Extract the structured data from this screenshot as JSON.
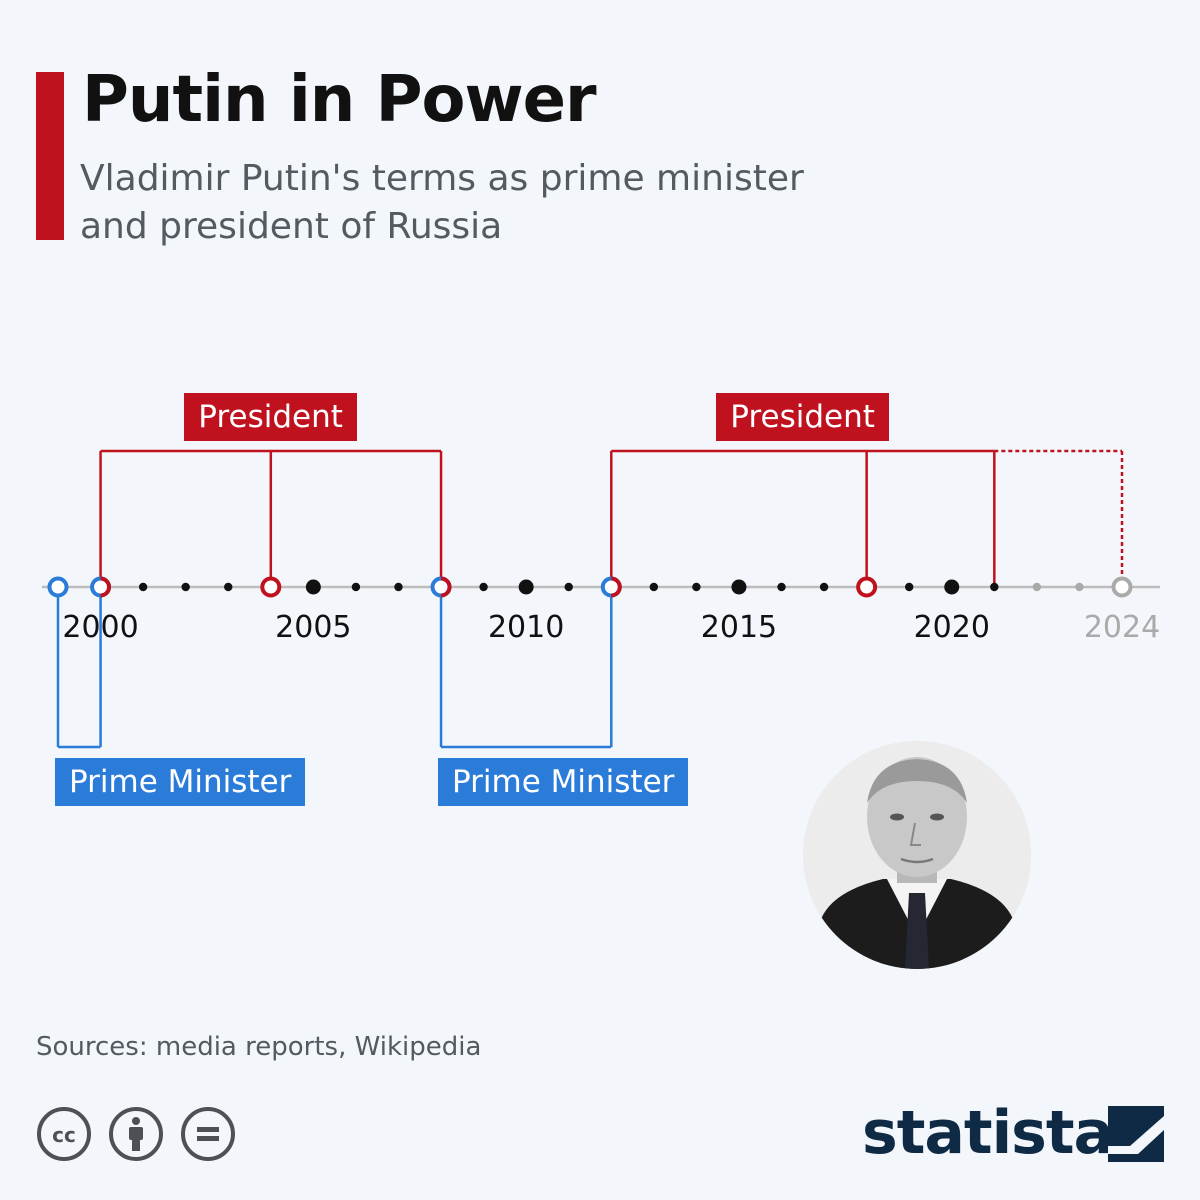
{
  "header": {
    "title": "Putin in Power",
    "subtitle": "Vladimir Putin's terms as prime minister and president of Russia"
  },
  "chart_data": {
    "type": "timeline",
    "x_range": [
      1999,
      2024
    ],
    "tick_labels": [
      {
        "year": 2000,
        "label": "2000",
        "projected": false
      },
      {
        "year": 2005,
        "label": "2005",
        "projected": false
      },
      {
        "year": 2010,
        "label": "2010",
        "projected": false
      },
      {
        "year": 2015,
        "label": "2015",
        "projected": false
      },
      {
        "year": 2020,
        "label": "2020",
        "projected": false
      },
      {
        "year": 2024,
        "label": "2024",
        "projected": true
      }
    ],
    "terms": [
      {
        "role": "president",
        "label": "President",
        "start": 2000,
        "end": 2008,
        "splits": [
          2004
        ],
        "projected_until": null
      },
      {
        "role": "president",
        "label": "President",
        "start": 2012,
        "end": 2021,
        "splits": [
          2018
        ],
        "projected_until": 2024
      },
      {
        "role": "prime_minister",
        "label": "Prime Minister",
        "start": 1999,
        "end": 2000,
        "splits": [],
        "projected_until": null
      },
      {
        "role": "prime_minister",
        "label": "Prime Minister",
        "start": 2008,
        "end": 2012,
        "splits": [],
        "projected_until": null
      }
    ],
    "events": [
      {
        "year": 1999,
        "kind": "pm"
      },
      {
        "year": 2000,
        "kind": "switch"
      },
      {
        "year": 2004,
        "kind": "president"
      },
      {
        "year": 2008,
        "kind": "switch"
      },
      {
        "year": 2012,
        "kind": "switch"
      },
      {
        "year": 2018,
        "kind": "president"
      },
      {
        "year": 2024,
        "kind": "projected"
      }
    ],
    "projected_after": 2021,
    "colors": {
      "president": "#c0111f",
      "prime_minister": "#2b7bd9",
      "axis": "#bdbdbd",
      "dot": "#111111",
      "projected": "#aaaaaa"
    }
  },
  "photo": {
    "icon": "portrait-photo"
  },
  "footer": {
    "sources": "Sources: media reports, Wikipedia",
    "license_icons": [
      "cc-icon",
      "attribution-icon",
      "no-derivatives-icon"
    ],
    "brand": "statista"
  }
}
